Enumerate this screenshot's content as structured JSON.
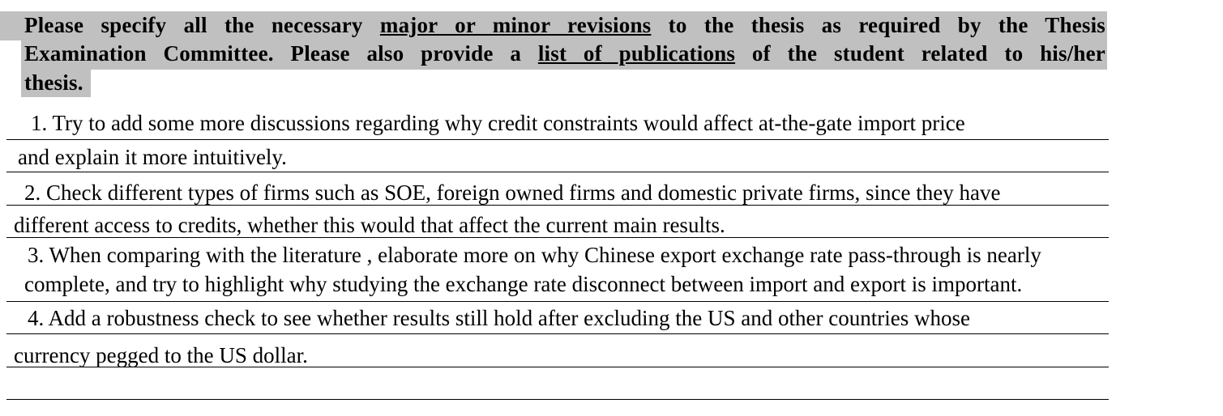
{
  "header": {
    "line1": {
      "pre": "Please specify all the necessary",
      "link": "major or minor revisions",
      "post": "to the thesis as required by the Thesis"
    },
    "line2": {
      "pre": "Examination Committee.  Please also provide a",
      "link": "list of publications",
      "post": "of the student related to his/her"
    },
    "line3": "thesis."
  },
  "revisions": [
    {
      "line1": "1.  Try to add some more discussions regarding why credit constraints would affect at-the-gate import price",
      "line2": "and explain it more intuitively."
    },
    {
      "line1": "2. Check different types of firms such as SOE, foreign owned firms and domestic private firms, since they have",
      "line2": "different access to credits, whether this would that affect the current main results."
    },
    {
      "line1": "3. When comparing with the literature , elaborate more on why Chinese export exchange rate pass-through is nearly",
      "line2": "complete, and try to highlight why studying the exchange rate disconnect between import and export is important."
    },
    {
      "line1": "4. Add a robustness check to see whether results still hold after excluding the US and other countries whose",
      "line2": "currency pegged to the US dollar."
    }
  ]
}
